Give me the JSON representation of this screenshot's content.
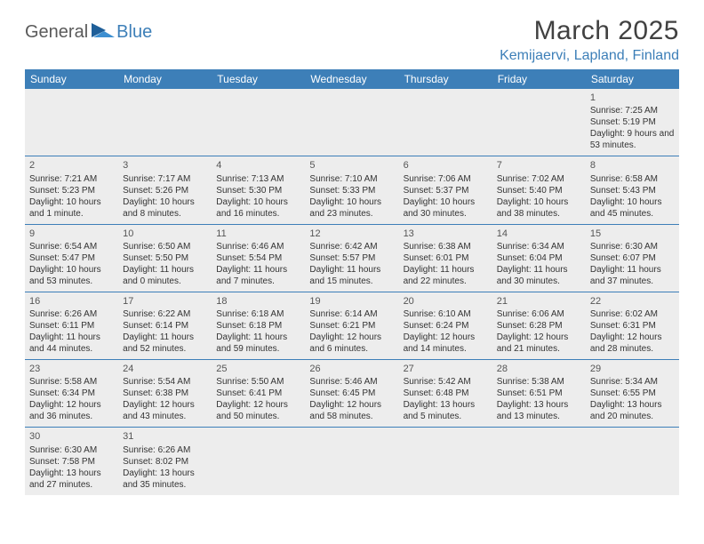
{
  "logo": {
    "text1": "General",
    "text2": "Blue"
  },
  "title": "March 2025",
  "location": "Kemijaervi, Lapland, Finland",
  "colors": {
    "header_bg": "#3d7fb8",
    "header_fg": "#ffffff",
    "cell_bg": "#ededed",
    "border": "#3d7fb8",
    "title_color": "#414141",
    "location_color": "#3d7fb8"
  },
  "weekdays": [
    "Sunday",
    "Monday",
    "Tuesday",
    "Wednesday",
    "Thursday",
    "Friday",
    "Saturday"
  ],
  "weeks": [
    [
      null,
      null,
      null,
      null,
      null,
      null,
      {
        "n": "1",
        "sr": "7:25 AM",
        "ss": "5:19 PM",
        "dl": "9 hours and 53 minutes."
      }
    ],
    [
      {
        "n": "2",
        "sr": "7:21 AM",
        "ss": "5:23 PM",
        "dl": "10 hours and 1 minute."
      },
      {
        "n": "3",
        "sr": "7:17 AM",
        "ss": "5:26 PM",
        "dl": "10 hours and 8 minutes."
      },
      {
        "n": "4",
        "sr": "7:13 AM",
        "ss": "5:30 PM",
        "dl": "10 hours and 16 minutes."
      },
      {
        "n": "5",
        "sr": "7:10 AM",
        "ss": "5:33 PM",
        "dl": "10 hours and 23 minutes."
      },
      {
        "n": "6",
        "sr": "7:06 AM",
        "ss": "5:37 PM",
        "dl": "10 hours and 30 minutes."
      },
      {
        "n": "7",
        "sr": "7:02 AM",
        "ss": "5:40 PM",
        "dl": "10 hours and 38 minutes."
      },
      {
        "n": "8",
        "sr": "6:58 AM",
        "ss": "5:43 PM",
        "dl": "10 hours and 45 minutes."
      }
    ],
    [
      {
        "n": "9",
        "sr": "6:54 AM",
        "ss": "5:47 PM",
        "dl": "10 hours and 53 minutes."
      },
      {
        "n": "10",
        "sr": "6:50 AM",
        "ss": "5:50 PM",
        "dl": "11 hours and 0 minutes."
      },
      {
        "n": "11",
        "sr": "6:46 AM",
        "ss": "5:54 PM",
        "dl": "11 hours and 7 minutes."
      },
      {
        "n": "12",
        "sr": "6:42 AM",
        "ss": "5:57 PM",
        "dl": "11 hours and 15 minutes."
      },
      {
        "n": "13",
        "sr": "6:38 AM",
        "ss": "6:01 PM",
        "dl": "11 hours and 22 minutes."
      },
      {
        "n": "14",
        "sr": "6:34 AM",
        "ss": "6:04 PM",
        "dl": "11 hours and 30 minutes."
      },
      {
        "n": "15",
        "sr": "6:30 AM",
        "ss": "6:07 PM",
        "dl": "11 hours and 37 minutes."
      }
    ],
    [
      {
        "n": "16",
        "sr": "6:26 AM",
        "ss": "6:11 PM",
        "dl": "11 hours and 44 minutes."
      },
      {
        "n": "17",
        "sr": "6:22 AM",
        "ss": "6:14 PM",
        "dl": "11 hours and 52 minutes."
      },
      {
        "n": "18",
        "sr": "6:18 AM",
        "ss": "6:18 PM",
        "dl": "11 hours and 59 minutes."
      },
      {
        "n": "19",
        "sr": "6:14 AM",
        "ss": "6:21 PM",
        "dl": "12 hours and 6 minutes."
      },
      {
        "n": "20",
        "sr": "6:10 AM",
        "ss": "6:24 PM",
        "dl": "12 hours and 14 minutes."
      },
      {
        "n": "21",
        "sr": "6:06 AM",
        "ss": "6:28 PM",
        "dl": "12 hours and 21 minutes."
      },
      {
        "n": "22",
        "sr": "6:02 AM",
        "ss": "6:31 PM",
        "dl": "12 hours and 28 minutes."
      }
    ],
    [
      {
        "n": "23",
        "sr": "5:58 AM",
        "ss": "6:34 PM",
        "dl": "12 hours and 36 minutes."
      },
      {
        "n": "24",
        "sr": "5:54 AM",
        "ss": "6:38 PM",
        "dl": "12 hours and 43 minutes."
      },
      {
        "n": "25",
        "sr": "5:50 AM",
        "ss": "6:41 PM",
        "dl": "12 hours and 50 minutes."
      },
      {
        "n": "26",
        "sr": "5:46 AM",
        "ss": "6:45 PM",
        "dl": "12 hours and 58 minutes."
      },
      {
        "n": "27",
        "sr": "5:42 AM",
        "ss": "6:48 PM",
        "dl": "13 hours and 5 minutes."
      },
      {
        "n": "28",
        "sr": "5:38 AM",
        "ss": "6:51 PM",
        "dl": "13 hours and 13 minutes."
      },
      {
        "n": "29",
        "sr": "5:34 AM",
        "ss": "6:55 PM",
        "dl": "13 hours and 20 minutes."
      }
    ],
    [
      {
        "n": "30",
        "sr": "6:30 AM",
        "ss": "7:58 PM",
        "dl": "13 hours and 27 minutes."
      },
      {
        "n": "31",
        "sr": "6:26 AM",
        "ss": "8:02 PM",
        "dl": "13 hours and 35 minutes."
      },
      null,
      null,
      null,
      null,
      null
    ]
  ],
  "labels": {
    "sunrise": "Sunrise: ",
    "sunset": "Sunset: ",
    "daylight": "Daylight: "
  }
}
